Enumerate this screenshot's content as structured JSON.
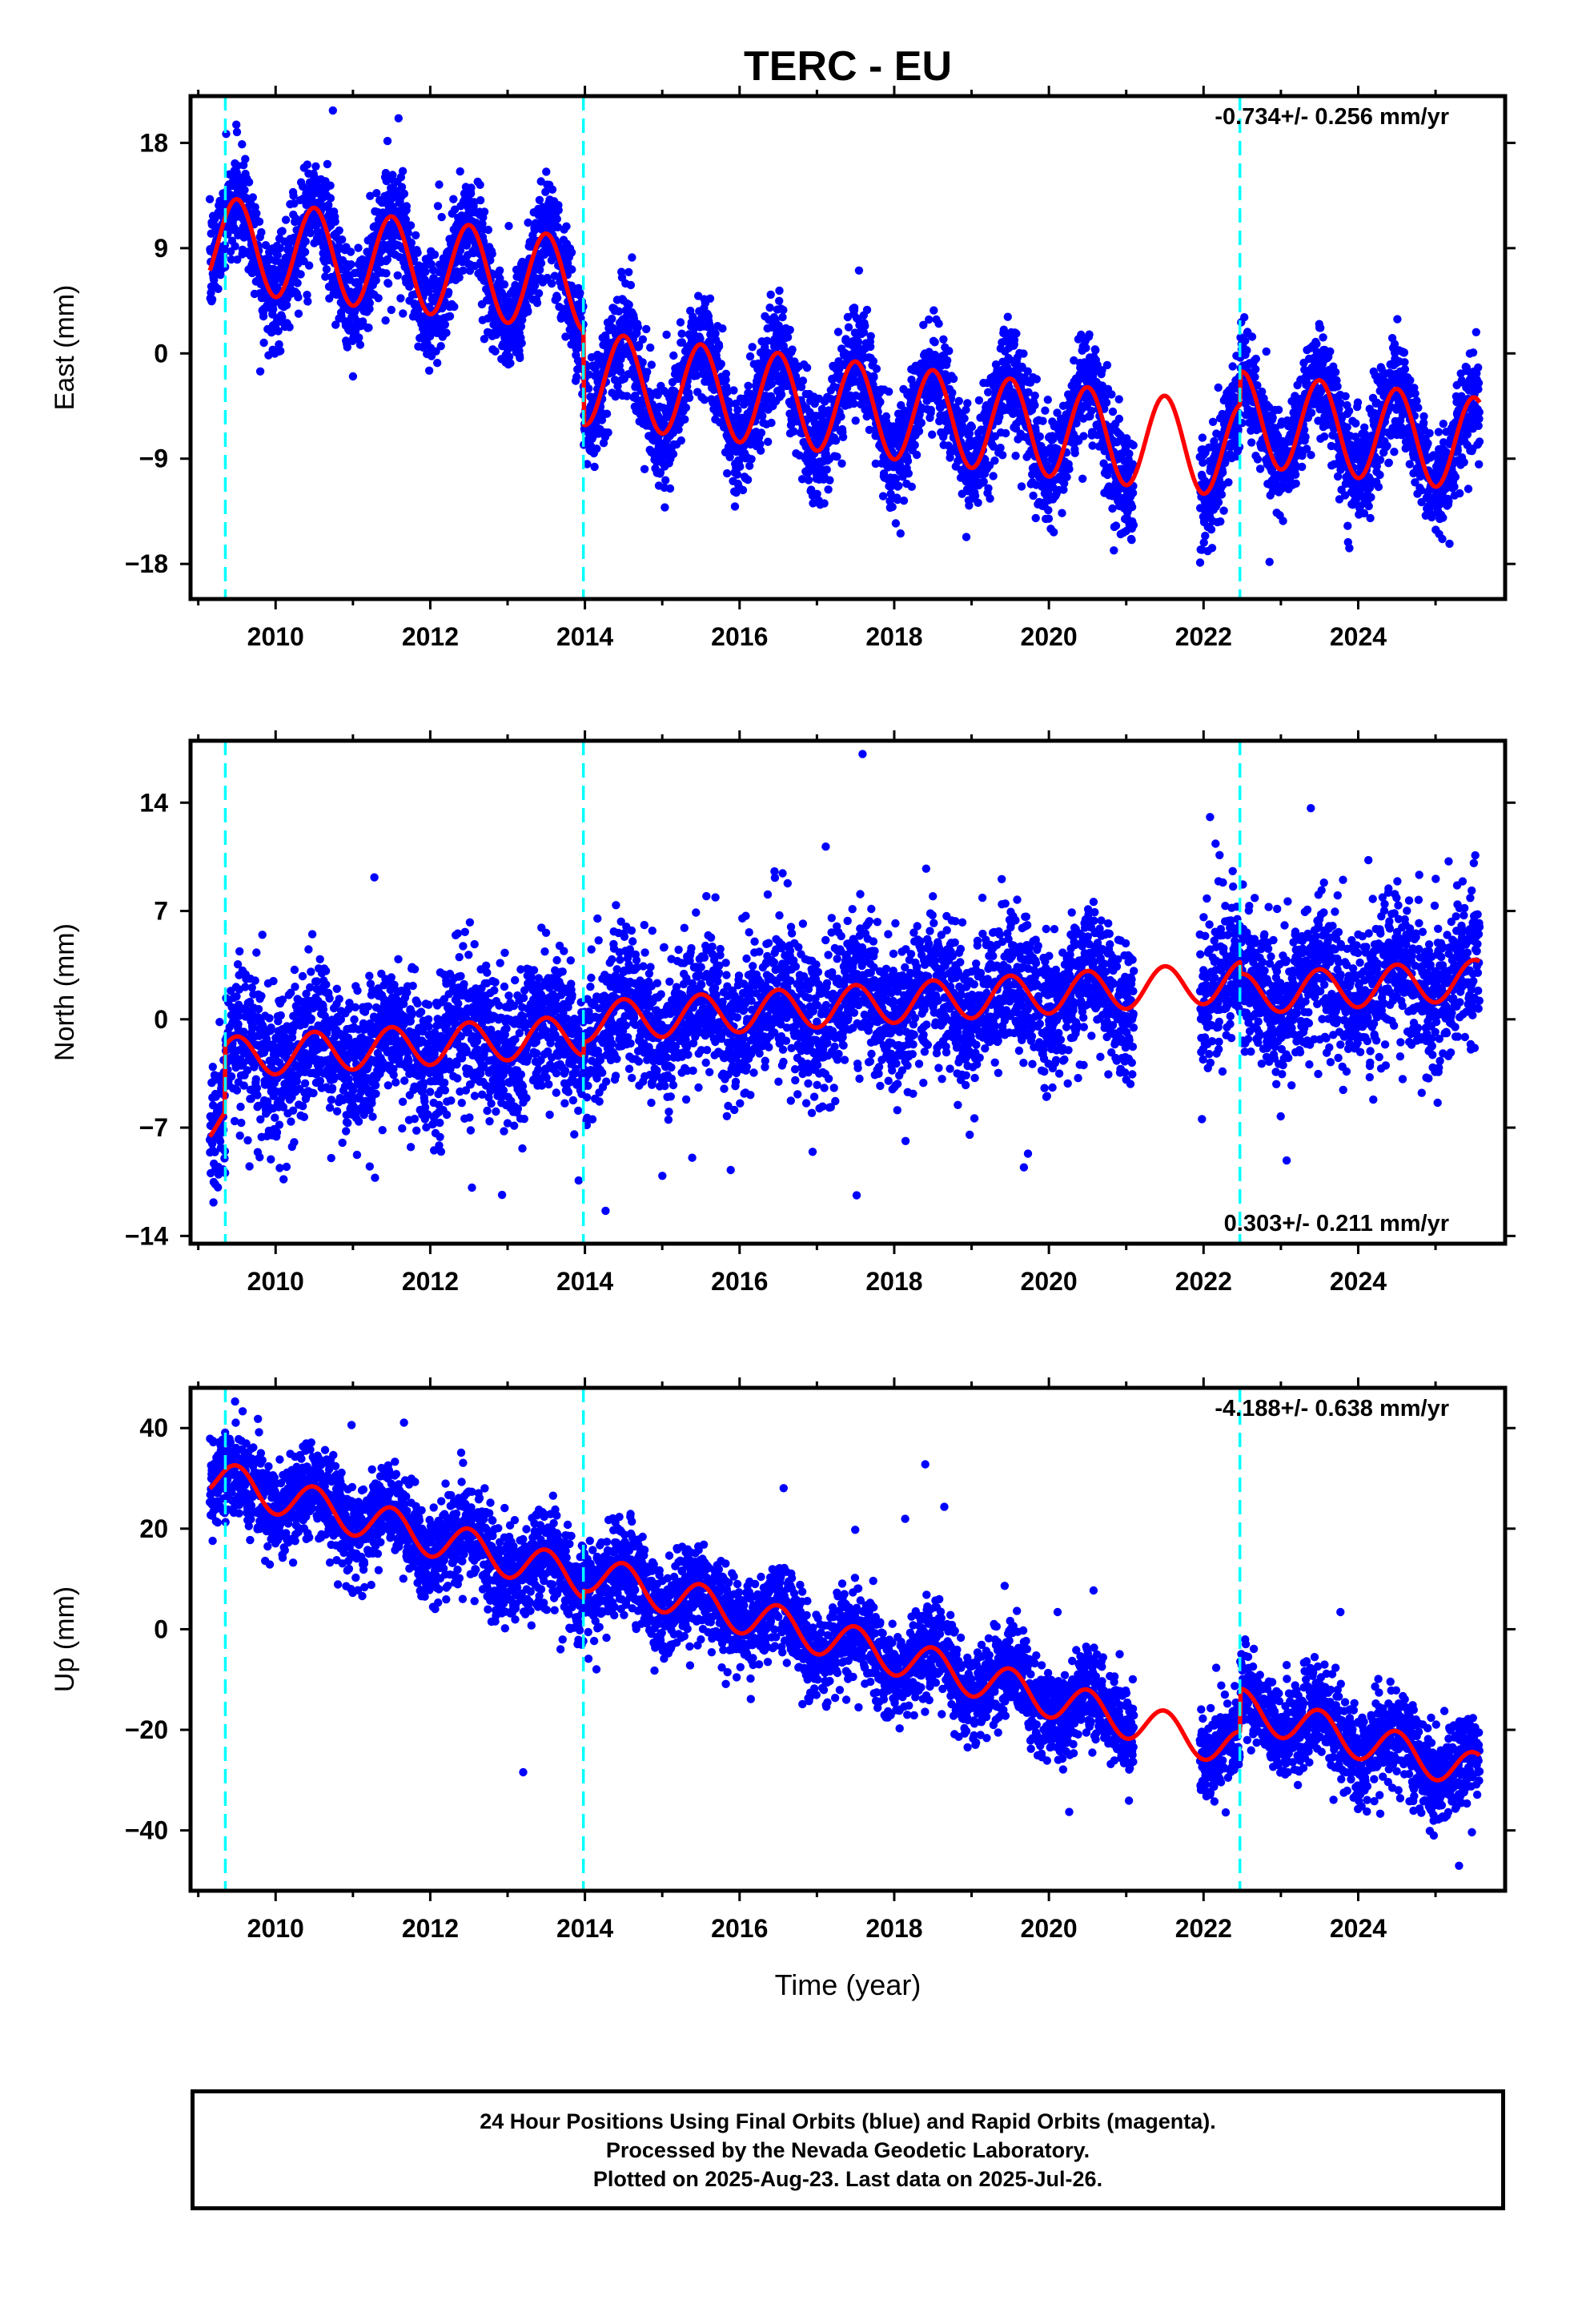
{
  "chart_data": [
    {
      "panel": "east",
      "type": "scatter",
      "title": "TERC - EU",
      "ylabel": "East (mm)",
      "xlabel": "",
      "xlim": [
        2008.9,
        2025.9
      ],
      "ylim": [
        -21,
        22
      ],
      "yticks": [
        -18,
        -9,
        0,
        9,
        18
      ],
      "xticks": [
        2010,
        2012,
        2014,
        2016,
        2018,
        2020,
        2022,
        2024
      ],
      "rate_label": "-0.734+/- 0.256 mm/yr",
      "rate_position": "top-right",
      "breaks": [
        2009.35,
        2013.98,
        2022.47
      ],
      "data_range": [
        2009.15,
        2025.57
      ],
      "gap": [
        2021.1,
        2021.95
      ],
      "trend": {
        "t0": 2009.2,
        "segments": [
          {
            "start": 2009.15,
            "end": 2013.98,
            "offset": 9.4,
            "rate": -0.734
          },
          {
            "start": 2013.98,
            "end": 2022.47,
            "offset": 1.4,
            "rate": -0.734
          },
          {
            "start": 2022.47,
            "end": 2025.57,
            "offset": 4.2,
            "rate": -0.734
          }
        ]
      },
      "annual_amplitude": 4.0,
      "annual_peak": 0.5,
      "scatter_sigma": 2.2,
      "series": [
        {
          "name": "",
          "color": "#0000ff",
          "marker": "dot"
        },
        {
          "name": "",
          "color": "#ff0000",
          "marker": "line"
        }
      ]
    },
    {
      "panel": "north",
      "type": "scatter",
      "title": "",
      "ylabel": "North (mm)",
      "xlabel": "",
      "xlim": [
        2008.9,
        2025.9
      ],
      "ylim": [
        -14.5,
        18
      ],
      "yticks": [
        -14,
        -7,
        0,
        7,
        14
      ],
      "xticks": [
        2010,
        2012,
        2014,
        2016,
        2018,
        2020,
        2022,
        2024
      ],
      "rate_label": "0.303+/- 0.211 mm/yr",
      "rate_position": "bottom-right",
      "breaks": [
        2009.35,
        2013.98,
        2022.47
      ],
      "data_range": [
        2009.15,
        2025.57
      ],
      "gap": [
        2021.1,
        2021.95
      ],
      "trend": {
        "t0": 2009.2,
        "segments": [
          {
            "start": 2009.15,
            "end": 2009.35,
            "offset": -6.8,
            "rate": 0.303
          },
          {
            "start": 2009.35,
            "end": 2013.98,
            "offset": -2.5,
            "rate": 0.303
          },
          {
            "start": 2013.98,
            "end": 2022.47,
            "offset": -1.6,
            "rate": 0.303
          },
          {
            "start": 2022.47,
            "end": 2025.57,
            "offset": -2.4,
            "rate": 0.303
          }
        ]
      },
      "annual_amplitude": 1.3,
      "annual_peak": 0.5,
      "scatter_sigma": 2.3,
      "series": [
        {
          "name": "",
          "color": "#0000ff",
          "marker": "dot"
        },
        {
          "name": "",
          "color": "#ff0000",
          "marker": "line"
        }
      ]
    },
    {
      "panel": "up",
      "type": "scatter",
      "title": "",
      "ylabel": "Up (mm)",
      "xlabel": "Time (year)",
      "xlim": [
        2008.9,
        2025.9
      ],
      "ylim": [
        -52,
        48
      ],
      "yticks": [
        -40,
        -20,
        0,
        20,
        40
      ],
      "xticks": [
        2010,
        2012,
        2014,
        2016,
        2018,
        2020,
        2022,
        2024
      ],
      "rate_label": "-4.188+/- 0.638 mm/yr",
      "rate_position": "top-right",
      "breaks": [
        2009.35,
        2013.98,
        2022.47
      ],
      "data_range": [
        2009.15,
        2025.57
      ],
      "gap": [
        2021.1,
        2021.95
      ],
      "trend": {
        "t0": 2009.2,
        "segments": [
          {
            "start": 2009.15,
            "end": 2013.98,
            "offset": 30.0,
            "rate": -4.188
          },
          {
            "start": 2013.98,
            "end": 2022.47,
            "offset": 31.5,
            "rate": -4.188
          },
          {
            "start": 2022.47,
            "end": 2025.57,
            "offset": 40.0,
            "rate": -4.188
          }
        ]
      },
      "annual_amplitude": 3.8,
      "annual_peak": 0.5,
      "scatter_sigma": 4.5,
      "series": [
        {
          "name": "",
          "color": "#0000ff",
          "marker": "dot"
        },
        {
          "name": "",
          "color": "#ff0000",
          "marker": "line"
        }
      ]
    }
  ],
  "colors": {
    "data": "#0000ff",
    "model": "#ff0000",
    "break_line": "#00ffff",
    "frame": "#000000"
  },
  "footer": {
    "line1": "24 Hour Positions Using Final Orbits (blue) and Rapid Orbits (magenta).",
    "line2": "Processed by the Nevada Geodetic Laboratory.",
    "line3": "Plotted on 2025-Aug-23. Last data on 2025-Jul-26."
  }
}
